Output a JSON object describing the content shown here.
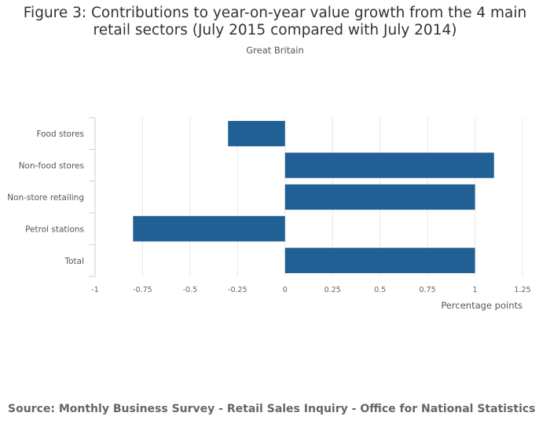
{
  "title": "Figure 3: Contributions to year-on-year value growth from the 4 main retail sectors (July 2015 compared with July 2014)",
  "subtitle": "Great Britain",
  "source": "Source: Monthly Business Survey - Retail Sales Inquiry - Office for National Statistics",
  "colors": {
    "bar": "#206095",
    "grid": "#e8e8e8",
    "axis": "#c9d1de"
  },
  "chart_data": {
    "type": "bar",
    "orientation": "horizontal",
    "categories": [
      "Food stores",
      "Non-food stores",
      "Non-store retailing",
      "Petrol stations",
      "Total"
    ],
    "values": [
      -0.3,
      1.1,
      1.0,
      -0.8,
      1.0
    ],
    "xlabel": "Percentage points",
    "ylabel": "",
    "xlim": [
      -1,
      1.25
    ],
    "xticks": [
      -1,
      -0.75,
      -0.5,
      -0.25,
      0,
      0.25,
      0.5,
      0.75,
      1,
      1.25
    ],
    "xtick_labels": [
      "-1",
      "-0.75",
      "-0.5",
      "-0.25",
      "0",
      "0.25",
      "0.5",
      "0.75",
      "1",
      "1.25"
    ],
    "grid": true,
    "legend": "none"
  }
}
